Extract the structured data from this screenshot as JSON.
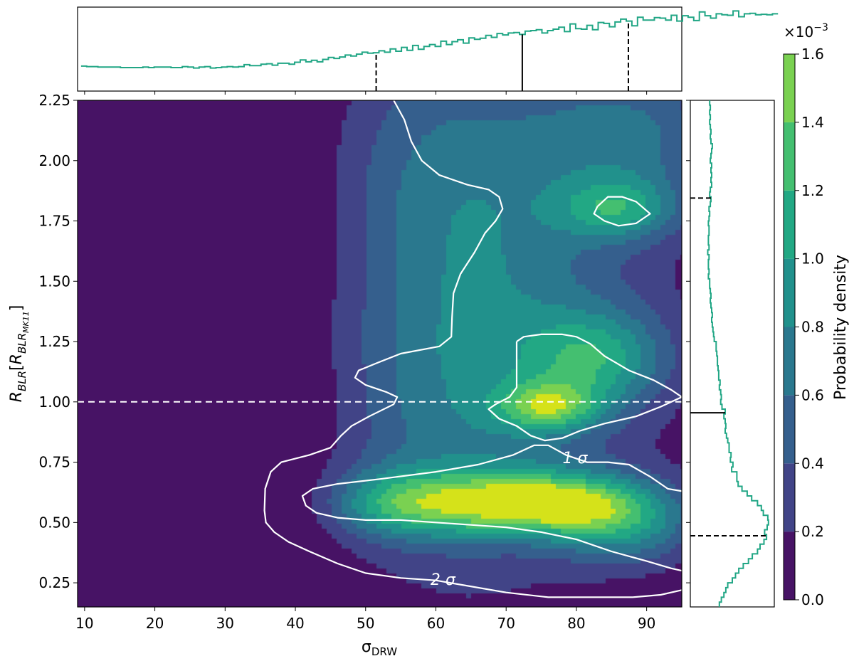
{
  "chart_data": {
    "type": "heatmap",
    "description": "Joint posterior probability density (filled contours) with marginal histograms",
    "xlabel": "σ",
    "xlabel_sub": "DRW",
    "ylabel_main": "R",
    "ylabel_sub": "BLR",
    "ylabel_bracket_main": "R",
    "ylabel_bracket_sub": "BLR",
    "ylabel_bracket_subsub": "MK11",
    "xlim": [
      9,
      95
    ],
    "ylim": [
      0.15,
      2.25
    ],
    "xticks": [
      10,
      20,
      30,
      40,
      50,
      60,
      70,
      80,
      90
    ],
    "xtick_labels": [
      "10",
      "20",
      "30",
      "40",
      "50",
      "60",
      "70",
      "80",
      "90"
    ],
    "yticks": [
      0.25,
      0.5,
      0.75,
      1.0,
      1.25,
      1.5,
      1.75,
      2.0,
      2.25
    ],
    "ytick_labels": [
      "0.25",
      "0.50",
      "0.75",
      "1.00",
      "1.25",
      "1.50",
      "1.75",
      "2.00",
      "2.25"
    ],
    "colorbar": {
      "label": "Probability density",
      "multiplier_base": "×10",
      "multiplier_exp": "−3",
      "range": [
        0.0,
        1.6
      ],
      "levels": [
        0.0,
        0.2,
        0.4,
        0.6,
        0.8,
        1.0,
        1.2,
        1.4,
        1.6
      ],
      "tick_labels": [
        "0.0",
        "0.2",
        "0.4",
        "0.6",
        "0.8",
        "1.0",
        "1.2",
        "1.4",
        "1.6"
      ],
      "colors": [
        "#471365",
        "#414487",
        "#355f8d",
        "#2a788e",
        "#21918c",
        "#22a884",
        "#44bf70",
        "#7ad151",
        "#d5e21a"
      ]
    },
    "density_peaks": [
      {
        "x": 75,
        "y": 0.58,
        "amp": 1.0,
        "sx": 9,
        "sy": 0.09
      },
      {
        "x": 55,
        "y": 0.58,
        "amp": 0.7,
        "sx": 9,
        "sy": 0.1
      },
      {
        "x": 87,
        "y": 0.5,
        "amp": 0.55,
        "sx": 7,
        "sy": 0.12
      },
      {
        "x": 76,
        "y": 0.98,
        "amp": 0.65,
        "sx": 5,
        "sy": 0.07
      },
      {
        "x": 83,
        "y": 1.18,
        "amp": 0.55,
        "sx": 7,
        "sy": 0.14
      },
      {
        "x": 86,
        "y": 1.8,
        "amp": 0.52,
        "sx": 6,
        "sy": 0.09
      },
      {
        "x": 70,
        "y": 1.5,
        "amp": 0.35,
        "sx": 16,
        "sy": 0.7
      },
      {
        "x": 62,
        "y": 1.0,
        "amp": 0.3,
        "sx": 13,
        "sy": 0.5
      },
      {
        "x": 88,
        "y": 2.1,
        "amp": 0.35,
        "sx": 9,
        "sy": 0.2
      },
      {
        "x": 60,
        "y": 2.0,
        "amp": 0.22,
        "sx": 12,
        "sy": 0.35
      }
    ],
    "reference_line_y": 1.0,
    "sigma_contours": [
      {
        "label": "1 σ",
        "paths": [
          [
            [
              83.0,
              1.81
            ],
            [
              84.5,
              1.85
            ],
            [
              86.5,
              1.85
            ],
            [
              88.5,
              1.83
            ],
            [
              90.5,
              1.78
            ],
            [
              88.5,
              1.74
            ],
            [
              86.0,
              1.73
            ],
            [
              84.0,
              1.75
            ],
            [
              82.5,
              1.78
            ],
            [
              83.0,
              1.81
            ]
          ],
          [
            [
              71.5,
              1.25
            ],
            [
              72.5,
              1.27
            ],
            [
              75.0,
              1.28
            ],
            [
              78.0,
              1.28
            ],
            [
              80.0,
              1.27
            ],
            [
              82.0,
              1.24
            ],
            [
              84.0,
              1.19
            ],
            [
              87.5,
              1.13
            ],
            [
              91.0,
              1.09
            ],
            [
              93.5,
              1.05
            ],
            [
              95.0,
              1.02
            ],
            [
              92.0,
              0.98
            ],
            [
              88.5,
              0.94
            ],
            [
              84.0,
              0.91
            ],
            [
              80.5,
              0.88
            ],
            [
              78.0,
              0.85
            ],
            [
              75.5,
              0.84
            ],
            [
              73.5,
              0.86
            ],
            [
              71.5,
              0.9
            ],
            [
              69.0,
              0.93
            ],
            [
              67.5,
              0.97
            ],
            [
              68.5,
              0.99
            ],
            [
              70.5,
              1.02
            ],
            [
              71.5,
              1.06
            ],
            [
              71.5,
              1.12
            ],
            [
              71.5,
              1.18
            ],
            [
              71.5,
              1.25
            ]
          ],
          [
            [
              95.0,
              0.63
            ],
            [
              93.0,
              0.64
            ],
            [
              90.5,
              0.69
            ],
            [
              87.5,
              0.74
            ],
            [
              84.5,
              0.75
            ],
            [
              81.5,
              0.75
            ],
            [
              78.5,
              0.78
            ],
            [
              76.0,
              0.82
            ],
            [
              74.0,
              0.82
            ],
            [
              71.0,
              0.78
            ],
            [
              66.0,
              0.74
            ],
            [
              60.0,
              0.71
            ],
            [
              52.0,
              0.68
            ],
            [
              46.0,
              0.66
            ],
            [
              42.5,
              0.64
            ],
            [
              41.0,
              0.61
            ],
            [
              41.5,
              0.57
            ],
            [
              43.0,
              0.54
            ],
            [
              46.0,
              0.52
            ],
            [
              50.0,
              0.51
            ],
            [
              55.0,
              0.51
            ],
            [
              60.0,
              0.5
            ],
            [
              65.0,
              0.49
            ],
            [
              70.0,
              0.48
            ],
            [
              75.0,
              0.46
            ],
            [
              80.0,
              0.43
            ],
            [
              85.0,
              0.38
            ],
            [
              90.0,
              0.34
            ],
            [
              93.5,
              0.31
            ],
            [
              95.0,
              0.3
            ]
          ]
        ]
      },
      {
        "label": "2 σ",
        "paths": [
          [
            [
              54.0,
              2.25
            ],
            [
              55.5,
              2.17
            ],
            [
              56.5,
              2.08
            ],
            [
              58.0,
              2.0
            ],
            [
              60.5,
              1.94
            ],
            [
              64.5,
              1.9
            ],
            [
              67.5,
              1.88
            ],
            [
              69.0,
              1.85
            ],
            [
              69.5,
              1.8
            ],
            [
              68.5,
              1.75
            ],
            [
              67.0,
              1.7
            ],
            [
              65.5,
              1.62
            ],
            [
              63.5,
              1.53
            ],
            [
              62.5,
              1.45
            ],
            [
              62.3,
              1.35
            ],
            [
              62.2,
              1.27
            ],
            [
              60.5,
              1.23
            ],
            [
              55.0,
              1.2
            ],
            [
              51.5,
              1.16
            ],
            [
              49.0,
              1.13
            ],
            [
              48.5,
              1.1
            ],
            [
              50.0,
              1.07
            ],
            [
              53.0,
              1.04
            ],
            [
              54.5,
              1.02
            ],
            [
              54.0,
              0.99
            ],
            [
              50.5,
              0.94
            ],
            [
              48.0,
              0.9
            ],
            [
              46.5,
              0.86
            ],
            [
              45.0,
              0.81
            ],
            [
              42.0,
              0.78
            ],
            [
              38.0,
              0.75
            ],
            [
              36.5,
              0.71
            ],
            [
              35.7,
              0.64
            ],
            [
              35.6,
              0.55
            ],
            [
              35.8,
              0.5
            ],
            [
              37.0,
              0.46
            ],
            [
              39.0,
              0.42
            ],
            [
              42.0,
              0.38
            ],
            [
              46.0,
              0.33
            ],
            [
              50.0,
              0.29
            ],
            [
              55.0,
              0.27
            ],
            [
              60.0,
              0.26
            ],
            [
              64.0,
              0.24
            ],
            [
              70.0,
              0.21
            ],
            [
              76.0,
              0.19
            ],
            [
              82.0,
              0.19
            ],
            [
              88.0,
              0.19
            ],
            [
              92.0,
              0.2
            ],
            [
              95.0,
              0.22
            ]
          ]
        ]
      }
    ],
    "contour_label_positions": [
      {
        "text": "1 σ",
        "x": 79.8,
        "y": 0.77
      },
      {
        "text": "2 σ",
        "x": 61.0,
        "y": 0.265
      }
    ],
    "x_marginal": {
      "bin_start": 9.5,
      "bin_width": 0.8,
      "counts": [
        52,
        51,
        51,
        50,
        50,
        50,
        50,
        49,
        49,
        49,
        49,
        50,
        49,
        50,
        50,
        50,
        49,
        49,
        51,
        50,
        48,
        50,
        51,
        48,
        49,
        50,
        51,
        50,
        51,
        55,
        53,
        53,
        56,
        57,
        54,
        58,
        58,
        56,
        60,
        65,
        61,
        64,
        61,
        66,
        70,
        68,
        71,
        75,
        73,
        77,
        81,
        79,
        80,
        84,
        81,
        88,
        83,
        91,
        85,
        95,
        87,
        93,
        97,
        93,
        104,
        97,
        103,
        107,
        100,
        111,
        108,
        110,
        116,
        112,
        120,
        117,
        121,
        122,
        118,
        125,
        126,
        128,
        121,
        126,
        129,
        133,
        124,
        140,
        130,
        129,
        137,
        128,
        143,
        141,
        134,
        144,
        150,
        146,
        136,
        154,
        148,
        148,
        153,
        152,
        148,
        158,
        146,
        157,
        154,
        147,
        165,
        157,
        152,
        161,
        159,
        158,
        167,
        155,
        161,
        162,
        159,
        160,
        159,
        161
      ],
      "max": 175,
      "median_x": 72.3,
      "lower_x": 51.5,
      "upper_x": 87.4
    },
    "y_marginal": {
      "bin_start": 0.15,
      "bin_width": 0.02,
      "counts": [
        45,
        48,
        52,
        55,
        58,
        65,
        70,
        75,
        82,
        90,
        96,
        104,
        108,
        114,
        118,
        115,
        119,
        121,
        120,
        113,
        110,
        104,
        95,
        88,
        80,
        74,
        72,
        72,
        64,
        66,
        62,
        63,
        60,
        60,
        58,
        56,
        54,
        55,
        54,
        52,
        54,
        49,
        47,
        48,
        47,
        45,
        46,
        44,
        44,
        43,
        42,
        42,
        41,
        40,
        40,
        37,
        36,
        35,
        34,
        33,
        34,
        33,
        32,
        31,
        32,
        31,
        30,
        30,
        28,
        29,
        28,
        28,
        29,
        27,
        29,
        28,
        28,
        29,
        29,
        28,
        29,
        30,
        29,
        31,
        32,
        30,
        31,
        33,
        32,
        33,
        32,
        33,
        31,
        32,
        33,
        34,
        32,
        31,
        32,
        31,
        30,
        31,
        30,
        31,
        30
      ],
      "max": 130,
      "median_y": 0.955,
      "lower_y": 0.445,
      "upper_y": 1.845
    },
    "histogram_color": "#21a685"
  }
}
